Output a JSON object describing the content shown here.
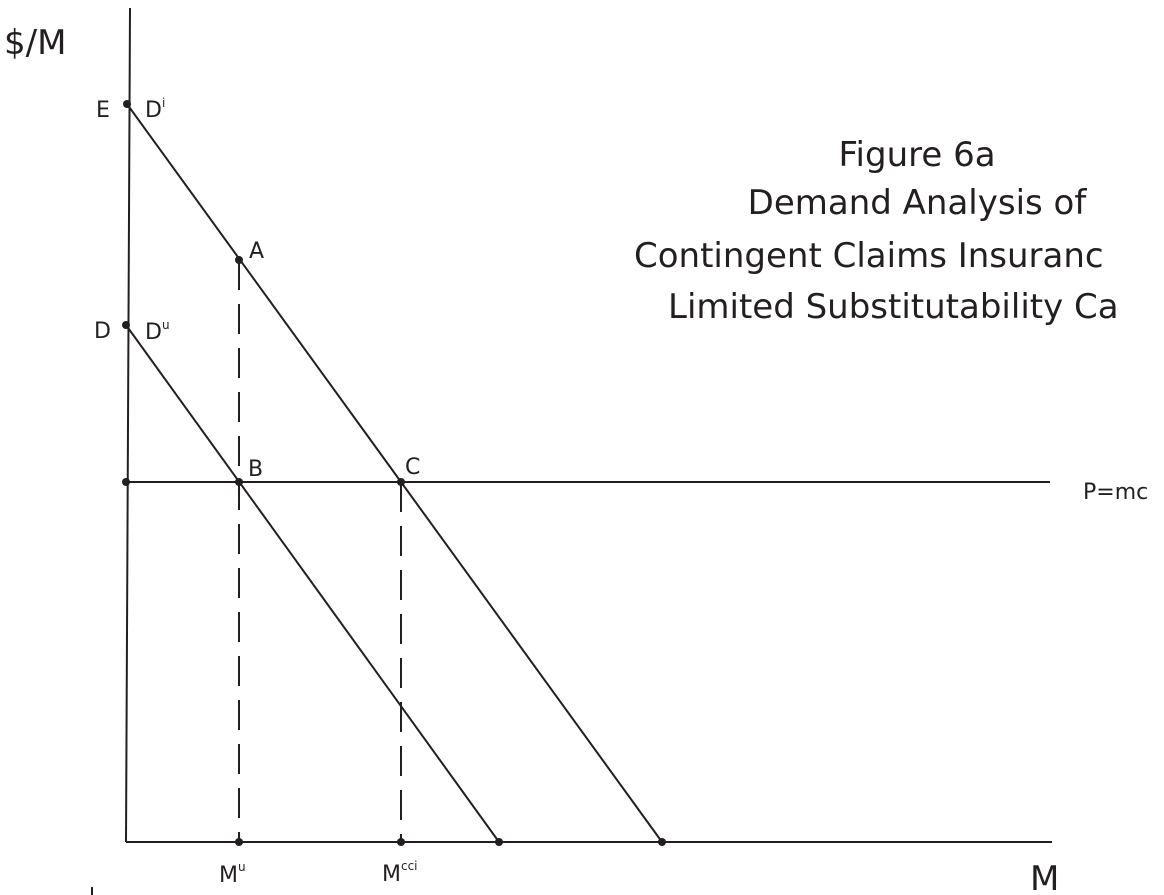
{
  "axes": {
    "y_label": "$/M",
    "x_label": "M"
  },
  "title": {
    "line1": "Figure 6a",
    "line2": "Demand Analysis of",
    "line3": "Contingent Claims Insuranc",
    "line4": "Limited Substitutability Ca"
  },
  "points": {
    "E": "E",
    "D": "D",
    "A": "A",
    "B": "B",
    "C": "C"
  },
  "curves": {
    "insured_demand_base": "D",
    "insured_demand_sup": "i",
    "uninsured_demand_base": "D",
    "uninsured_demand_sup": "u",
    "price_line": "P=mc"
  },
  "ticks": {
    "mu_base": "M",
    "mu_sup": "u",
    "mcci_base": "M",
    "mcci_sup": "cci"
  }
}
